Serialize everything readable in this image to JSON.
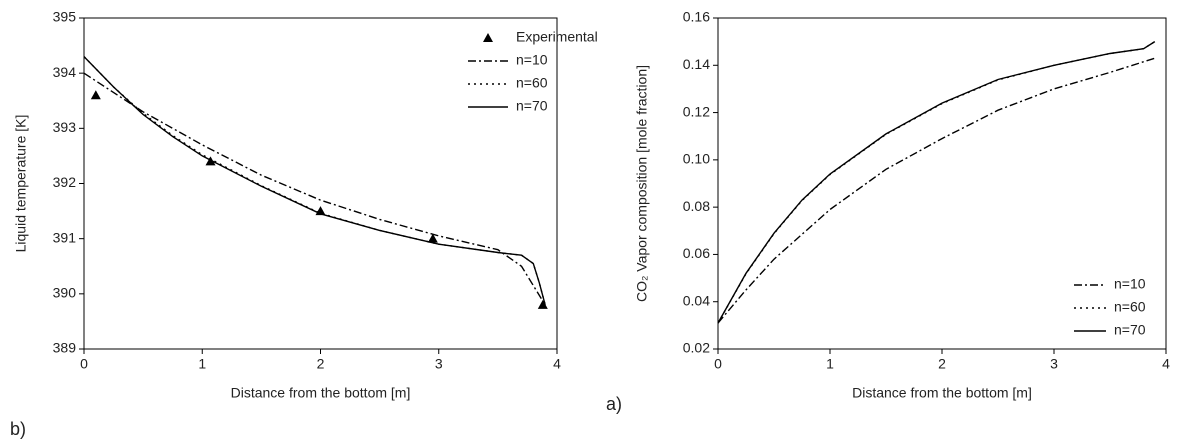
{
  "chart_data": [
    {
      "type": "line",
      "panel_label": "b)",
      "xlabel": "Distance from the bottom [m]",
      "ylabel": "Liquid temperature [K]",
      "xlim": [
        0,
        4
      ],
      "xticks": [
        0,
        1,
        2,
        3,
        4
      ],
      "ylim": [
        389,
        395
      ],
      "yticks": [
        389,
        390,
        391,
        392,
        393,
        394,
        395
      ],
      "legend": "upper right",
      "series": [
        {
          "name": "Experimental",
          "color": "#000000",
          "style": "triangles",
          "x": [
            0.1,
            1.07,
            2.0,
            2.95,
            3.88
          ],
          "values": [
            393.6,
            392.4,
            391.5,
            391.0,
            389.8
          ]
        },
        {
          "name": "n=10",
          "color": "#000000",
          "style": "dash-dot",
          "x": [
            0,
            0.5,
            1,
            1.5,
            2,
            2.5,
            3,
            3.5,
            3.7,
            3.9
          ],
          "values": [
            394.0,
            393.3,
            392.7,
            392.15,
            391.7,
            391.35,
            391.05,
            390.8,
            390.5,
            389.8
          ]
        },
        {
          "name": "n=60",
          "color": "#000000",
          "style": "dot",
          "x": [
            0,
            0.25,
            0.5,
            0.75,
            1,
            1.5,
            2,
            2.5,
            3,
            3.5,
            3.7,
            3.8,
            3.85,
            3.9
          ],
          "values": [
            394.3,
            393.75,
            393.27,
            392.87,
            392.52,
            391.96,
            391.46,
            391.15,
            390.9,
            390.75,
            390.7,
            390.55,
            390.2,
            389.8
          ]
        },
        {
          "name": "n=70",
          "color": "#000000",
          "style": "solid",
          "x": [
            0,
            0.25,
            0.5,
            0.75,
            1,
            1.5,
            2,
            2.5,
            3,
            3.5,
            3.7,
            3.8,
            3.85,
            3.9
          ],
          "values": [
            394.3,
            393.75,
            393.25,
            392.85,
            392.5,
            391.95,
            391.45,
            391.15,
            390.9,
            390.75,
            390.7,
            390.55,
            390.2,
            389.8
          ]
        }
      ]
    },
    {
      "type": "line",
      "panel_label": "a)",
      "xlabel": "Distance from the bottom [m]",
      "ylabel": "CO₂ Vapor composition [mole fraction]",
      "xlim": [
        0,
        4
      ],
      "xticks": [
        0,
        1,
        2,
        3,
        4
      ],
      "ylim": [
        0.02,
        0.16
      ],
      "yticks": [
        0.02,
        0.04,
        0.06,
        0.08,
        {
          "value": 0.1,
          "label": "0.10"
        },
        0.12,
        0.14,
        0.16
      ],
      "legend": "lower right",
      "series": [
        {
          "name": "n=10",
          "color": "#000000",
          "style": "dash-dot",
          "x": [
            0,
            0.25,
            0.5,
            1,
            1.5,
            2,
            2.5,
            3,
            3.5,
            3.9
          ],
          "values": [
            0.031,
            0.045,
            0.058,
            0.079,
            0.096,
            0.109,
            0.121,
            0.13,
            0.137,
            0.143
          ]
        },
        {
          "name": "n=60",
          "color": "#000000",
          "style": "dot",
          "x": [
            0,
            0.25,
            0.5,
            0.75,
            1,
            1.5,
            2,
            2.5,
            3,
            3.5,
            3.8,
            3.9
          ],
          "values": [
            0.031,
            0.0518,
            0.0688,
            0.0828,
            0.0938,
            0.1108,
            0.1238,
            0.1338,
            0.14,
            0.145,
            0.147,
            0.15
          ]
        },
        {
          "name": "n=70",
          "color": "#000000",
          "style": "solid",
          "x": [
            0,
            0.25,
            0.5,
            0.75,
            1,
            1.5,
            2,
            2.5,
            3,
            3.5,
            3.8,
            3.9
          ],
          "values": [
            0.031,
            0.052,
            0.069,
            0.083,
            0.094,
            0.111,
            0.124,
            0.134,
            0.14,
            0.145,
            0.147,
            0.15
          ]
        }
      ]
    }
  ]
}
